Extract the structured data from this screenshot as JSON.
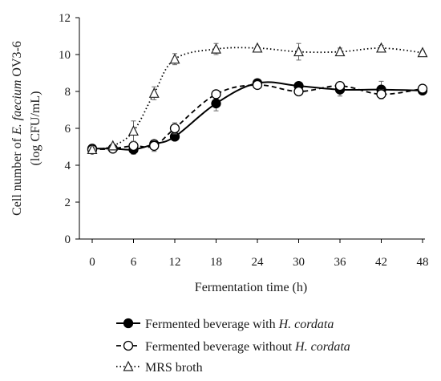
{
  "chart_data": {
    "type": "line",
    "title": "",
    "xlabel": "Fermentation time (h)",
    "ylabel": {
      "line1_prefix": "Cell number of ",
      "line1_italic": "E. faecium",
      "line1_suffix": " OV3-6",
      "line2": "(log CFU/mL)"
    },
    "xlim": [
      0,
      48
    ],
    "ylim": [
      0,
      12
    ],
    "x_ticks": [
      0,
      6,
      12,
      18,
      24,
      30,
      36,
      42,
      48
    ],
    "y_ticks": [
      0,
      2,
      4,
      6,
      8,
      10,
      12
    ],
    "grid": false,
    "legend_position": "bottom",
    "series": [
      {
        "key": "with",
        "name_prefix": "Fermented beverage with ",
        "name_italic": "H. cordata",
        "marker": "filled-circle",
        "line": "solid",
        "x": [
          0,
          3,
          6,
          9,
          12,
          18,
          24,
          30,
          36,
          42,
          48
        ],
        "y": [
          4.9,
          4.9,
          4.85,
          5.15,
          5.55,
          7.35,
          8.45,
          8.3,
          8.1,
          8.1,
          8.05
        ],
        "err": [
          0.1,
          0.1,
          0.25,
          0.1,
          0.15,
          0.4,
          0.1,
          0.1,
          0.35,
          0.45,
          0.15
        ]
      },
      {
        "key": "without",
        "name_prefix": "Fermented beverage without ",
        "name_italic": "H. cordata",
        "marker": "open-circle",
        "line": "dashed",
        "x": [
          0,
          3,
          6,
          9,
          12,
          18,
          24,
          30,
          36,
          42,
          48
        ],
        "y": [
          4.85,
          4.9,
          5.05,
          5.05,
          6.0,
          7.85,
          8.35,
          8.0,
          8.3,
          7.85,
          8.15
        ],
        "err": [
          0.1,
          0.1,
          0.15,
          0.3,
          0.3,
          0.2,
          0.1,
          0.15,
          0.2,
          0.25,
          0.1
        ]
      },
      {
        "key": "mrs",
        "name_prefix": "MRS broth",
        "name_italic": "",
        "marker": "open-triangle",
        "line": "dotted",
        "x": [
          0,
          3,
          6,
          9,
          12,
          18,
          24,
          30,
          36,
          42,
          48
        ],
        "y": [
          4.85,
          5.05,
          5.85,
          7.9,
          9.75,
          10.3,
          10.35,
          10.15,
          10.15,
          10.35,
          10.1
        ],
        "err": [
          0.1,
          0.1,
          0.55,
          0.35,
          0.3,
          0.3,
          0.1,
          0.45,
          0.2,
          0.15,
          0.1
        ]
      }
    ]
  }
}
